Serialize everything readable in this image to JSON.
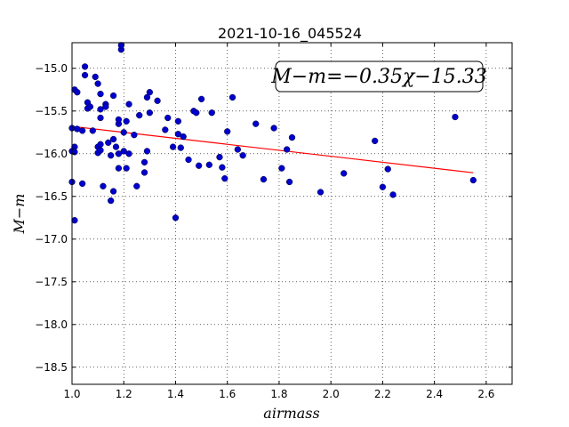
{
  "chart_data": {
    "type": "scatter",
    "title": "2021-10-16_045524",
    "xlabel": "airmass",
    "ylabel": "M−m",
    "xlim": [
      1.0,
      2.7
    ],
    "ylim": [
      -18.7,
      -14.7
    ],
    "y_inverted": true,
    "grid": true,
    "x_ticks": [
      1.0,
      1.2,
      1.4,
      1.6,
      1.8,
      2.0,
      2.2,
      2.4,
      2.6
    ],
    "x_tick_labels": [
      "1.0",
      "1.2",
      "1.4",
      "1.6",
      "1.8",
      "2.0",
      "2.2",
      "2.4",
      "2.6"
    ],
    "y_ticks": [
      -15.0,
      -15.5,
      -16.0,
      -16.5,
      -17.0,
      -17.5,
      -18.0,
      -18.5
    ],
    "y_tick_labels": [
      "−15.0",
      "−15.5",
      "−16.0",
      "−16.5",
      "−17.0",
      "−17.5",
      "−18.0",
      "−18.5"
    ],
    "annotation": "M−m=−0.35χ−15.33",
    "colors": {
      "points": "#0000cc",
      "fit": "#ff0000",
      "points_edge": "#000033"
    },
    "series": [
      {
        "values": [
          [
            1.0,
            -15.7
          ],
          [
            1.0,
            -15.97
          ],
          [
            1.0,
            -16.33
          ],
          [
            1.01,
            -15.25
          ],
          [
            1.01,
            -15.92
          ],
          [
            1.01,
            -15.98
          ],
          [
            1.01,
            -16.78
          ],
          [
            1.02,
            -15.28
          ],
          [
            1.02,
            -15.71
          ],
          [
            1.04,
            -16.35
          ],
          [
            1.04,
            -15.73
          ],
          [
            1.05,
            -14.98
          ],
          [
            1.05,
            -15.08
          ],
          [
            1.06,
            -15.4
          ],
          [
            1.06,
            -15.47
          ],
          [
            1.07,
            -15.45
          ],
          [
            1.08,
            -15.73
          ],
          [
            1.09,
            -15.1
          ],
          [
            1.1,
            -15.99
          ],
          [
            1.1,
            -15.92
          ],
          [
            1.1,
            -15.18
          ],
          [
            1.11,
            -15.58
          ],
          [
            1.11,
            -15.48
          ],
          [
            1.11,
            -15.3
          ],
          [
            1.11,
            -15.96
          ],
          [
            1.11,
            -15.89
          ],
          [
            1.12,
            -16.38
          ],
          [
            1.13,
            -15.42
          ],
          [
            1.13,
            -15.45
          ],
          [
            1.14,
            -15.87
          ],
          [
            1.15,
            -16.02
          ],
          [
            1.15,
            -16.55
          ],
          [
            1.16,
            -16.44
          ],
          [
            1.16,
            -15.32
          ],
          [
            1.16,
            -15.83
          ],
          [
            1.17,
            -15.92
          ],
          [
            1.18,
            -16.17
          ],
          [
            1.18,
            -16.0
          ],
          [
            1.18,
            -15.65
          ],
          [
            1.18,
            -15.6
          ],
          [
            1.19,
            -14.78
          ],
          [
            1.19,
            -14.73
          ],
          [
            1.2,
            -15.97
          ],
          [
            1.2,
            -15.75
          ],
          [
            1.21,
            -16.17
          ],
          [
            1.21,
            -15.62
          ],
          [
            1.22,
            -15.42
          ],
          [
            1.22,
            -16.0
          ],
          [
            1.24,
            -15.78
          ],
          [
            1.25,
            -16.38
          ],
          [
            1.26,
            -15.55
          ],
          [
            1.28,
            -16.22
          ],
          [
            1.28,
            -16.1
          ],
          [
            1.29,
            -15.34
          ],
          [
            1.29,
            -15.97
          ],
          [
            1.3,
            -15.28
          ],
          [
            1.3,
            -15.52
          ],
          [
            1.33,
            -15.38
          ],
          [
            1.36,
            -15.72
          ],
          [
            1.37,
            -15.58
          ],
          [
            1.39,
            -15.92
          ],
          [
            1.4,
            -16.75
          ],
          [
            1.41,
            -15.62
          ],
          [
            1.41,
            -15.77
          ],
          [
            1.42,
            -15.93
          ],
          [
            1.43,
            -15.8
          ],
          [
            1.45,
            -16.07
          ],
          [
            1.47,
            -15.5
          ],
          [
            1.48,
            -15.52
          ],
          [
            1.49,
            -16.14
          ],
          [
            1.5,
            -15.36
          ],
          [
            1.53,
            -16.13
          ],
          [
            1.54,
            -15.52
          ],
          [
            1.57,
            -16.04
          ],
          [
            1.58,
            -16.16
          ],
          [
            1.59,
            -16.29
          ],
          [
            1.6,
            -15.74
          ],
          [
            1.62,
            -15.34
          ],
          [
            1.64,
            -15.95
          ],
          [
            1.66,
            -16.02
          ],
          [
            1.71,
            -15.65
          ],
          [
            1.74,
            -16.3
          ],
          [
            1.78,
            -15.7
          ],
          [
            1.81,
            -16.17
          ],
          [
            1.83,
            -15.95
          ],
          [
            1.84,
            -16.33
          ],
          [
            1.85,
            -15.81
          ],
          [
            1.96,
            -16.45
          ],
          [
            2.05,
            -16.23
          ],
          [
            2.17,
            -15.85
          ],
          [
            2.2,
            -16.39
          ],
          [
            2.22,
            -16.18
          ],
          [
            2.24,
            -16.48
          ],
          [
            2.48,
            -15.57
          ],
          [
            2.55,
            -16.31
          ]
        ]
      }
    ],
    "fit": {
      "slope": -0.35,
      "intercept": -15.33,
      "x_range": [
        1.0,
        2.55
      ]
    }
  }
}
